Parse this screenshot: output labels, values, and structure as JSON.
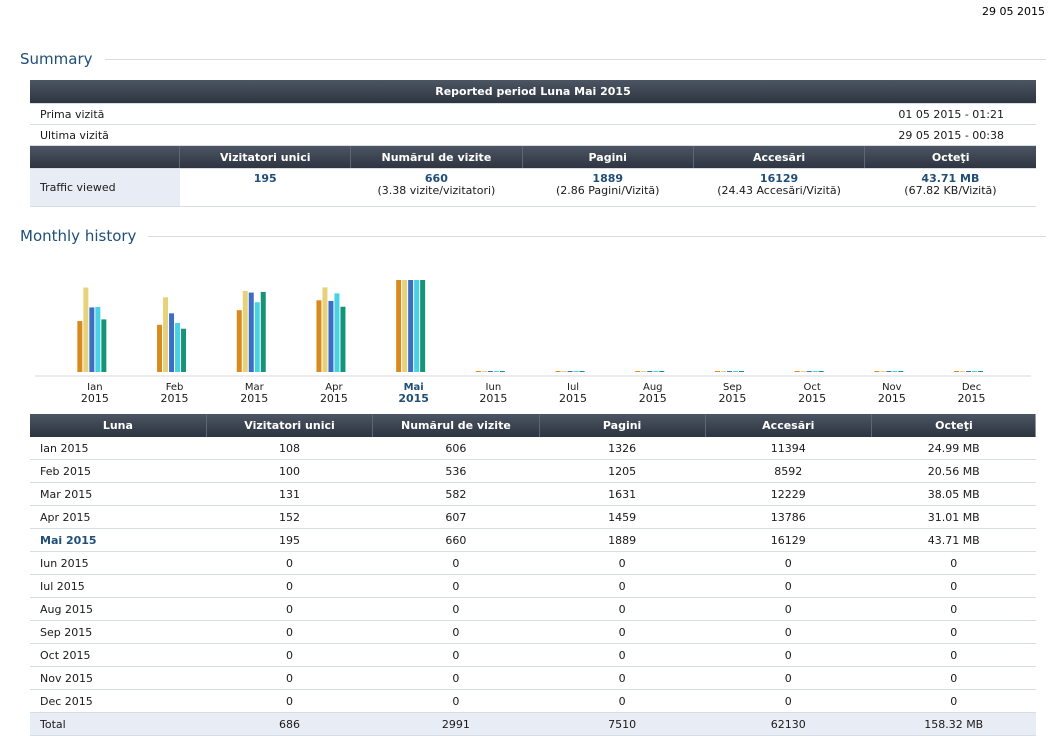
{
  "date": "29 05 2015",
  "summary": {
    "title": "Summary",
    "period_label": "Reported period Luna Mai 2015",
    "first_visit_label": "Prima vizită",
    "first_visit_value": "01 05 2015 - 01:21",
    "last_visit_label": "Ultima vizită",
    "last_visit_value": "29 05 2015 - 00:38",
    "columns": [
      "Vizitatori unici",
      "Numărul de vizite",
      "Pagini",
      "Accesări",
      "Octeţi"
    ],
    "traffic_label": "Traffic viewed",
    "values": [
      "195",
      "660",
      "1889",
      "16129",
      "43.71 MB"
    ],
    "subvalues": [
      "",
      "(3.38 vizite/vizitatori)",
      "(2.86 Pagini/Vizită)",
      "(24.43 Accesări/Vizită)",
      "(67.82 KB/Vizită)"
    ]
  },
  "history": {
    "title": "Monthly history",
    "columns": [
      "Luna",
      "Vizitatori unici",
      "Numărul de vizite",
      "Pagini",
      "Accesări",
      "Octeţi"
    ],
    "rows": [
      [
        "Ian 2015",
        "108",
        "606",
        "1326",
        "11394",
        "24.99 MB"
      ],
      [
        "Feb 2015",
        "100",
        "536",
        "1205",
        "8592",
        "20.56 MB"
      ],
      [
        "Mar 2015",
        "131",
        "582",
        "1631",
        "12229",
        "38.05 MB"
      ],
      [
        "Apr 2015",
        "152",
        "607",
        "1459",
        "13786",
        "31.01 MB"
      ],
      [
        "Mai 2015",
        "195",
        "660",
        "1889",
        "16129",
        "43.71 MB"
      ],
      [
        "Iun 2015",
        "0",
        "0",
        "0",
        "0",
        "0"
      ],
      [
        "Iul 2015",
        "0",
        "0",
        "0",
        "0",
        "0"
      ],
      [
        "Aug 2015",
        "0",
        "0",
        "0",
        "0",
        "0"
      ],
      [
        "Sep 2015",
        "0",
        "0",
        "0",
        "0",
        "0"
      ],
      [
        "Oct 2015",
        "0",
        "0",
        "0",
        "0",
        "0"
      ],
      [
        "Nov 2015",
        "0",
        "0",
        "0",
        "0",
        "0"
      ],
      [
        "Dec 2015",
        "0",
        "0",
        "0",
        "0",
        "0"
      ]
    ],
    "current_index": 4,
    "total": [
      "Total",
      "686",
      "2991",
      "7510",
      "62130",
      "158.32 MB"
    ]
  },
  "chart_data": {
    "type": "bar",
    "categories": [
      "Ian",
      "Feb",
      "Mar",
      "Apr",
      "Mai",
      "Iun",
      "Iul",
      "Aug",
      "Sep",
      "Oct",
      "Nov",
      "Dec"
    ],
    "year": "2015",
    "current": "Mai",
    "series": [
      {
        "values": [
          108,
          100,
          131,
          152,
          195,
          0,
          0,
          0,
          0,
          0,
          0,
          0
        ],
        "color": "#d98a1f"
      },
      {
        "values": [
          606,
          536,
          582,
          607,
          660,
          0,
          0,
          0,
          0,
          0,
          0,
          0
        ],
        "color": "#e6d27a"
      },
      {
        "values": [
          1326,
          1205,
          1631,
          1459,
          1889,
          0,
          0,
          0,
          0,
          0,
          0,
          0
        ],
        "color": "#3c6fc4"
      },
      {
        "values": [
          11394,
          8592,
          12229,
          13786,
          16129,
          0,
          0,
          0,
          0,
          0,
          0,
          0
        ],
        "color": "#48d2e4"
      },
      {
        "values": [
          24.99,
          20.56,
          38.05,
          31.01,
          43.71,
          0,
          0,
          0,
          0,
          0,
          0,
          0
        ],
        "color": "#159477"
      }
    ],
    "legend": "none",
    "grid": false
  }
}
